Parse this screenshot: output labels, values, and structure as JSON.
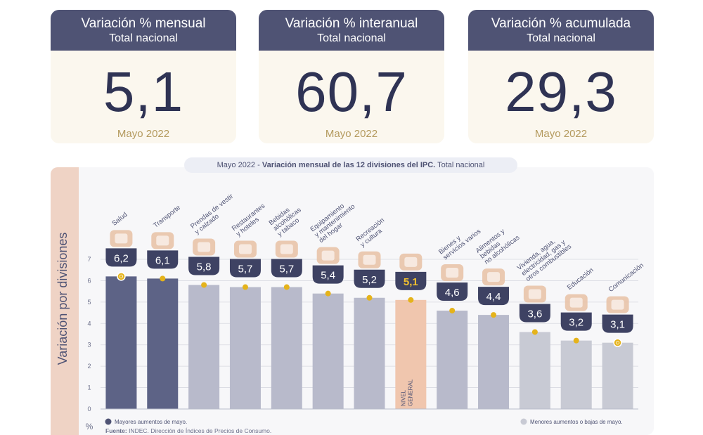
{
  "cards": [
    {
      "title": "Variación % mensual",
      "subtitle": "Total nacional",
      "value": "5,1",
      "date": "Mayo 2022"
    },
    {
      "title": "Variación % interanual",
      "subtitle": "Total nacional",
      "value": "60,7",
      "date": "Mayo 2022"
    },
    {
      "title": "Variación % acumulada",
      "subtitle": "Total nacional",
      "value": "29,3",
      "date": "Mayo 2022"
    }
  ],
  "chart_title": {
    "date": "Mayo 2022",
    "sep": " - ",
    "bold": "Variación mensual de las 12 divisiones del IPC.",
    "rest": " Total nacional"
  },
  "chart_data": {
    "type": "bar",
    "title": "Mayo 2022 - Variación mensual de las 12 divisiones del IPC. Total nacional",
    "ylabel": "Variación por divisiones",
    "yunit": "%",
    "ylim": [
      0,
      7
    ],
    "yticks": [
      "0",
      "1",
      "2",
      "3",
      "4",
      "5",
      "6",
      "7"
    ],
    "grid": true,
    "categories": [
      "Salud",
      "Transporte",
      "Prendas de vestir y calzado",
      "Restaurantes y hoteles",
      "Bebidas alcohólicas y tabaco",
      "Equipamiento y mantenimiento del hogar",
      "Recreación y cultura",
      "Nivel general",
      "Bienes y servicios varios",
      "Alimentos y bebidas no alcohólicas",
      "Vivienda, agua, electricidad, gas y otros combustibles",
      "Educación",
      "Comunicación"
    ],
    "values": [
      6.2,
      6.1,
      5.8,
      5.7,
      5.7,
      5.4,
      5.2,
      5.1,
      4.6,
      4.4,
      3.6,
      3.2,
      3.1
    ],
    "value_labels": [
      "6,2",
      "6,1",
      "5,8",
      "5,7",
      "5,7",
      "5,4",
      "5,2",
      "5,1",
      "4,6",
      "4,4",
      "3,6",
      "3,2",
      "3,1"
    ],
    "category_labels": [
      [
        "Salud"
      ],
      [
        "Transporte"
      ],
      [
        "Prendas de vestir",
        "y calzado"
      ],
      [
        "Restaurantes",
        "y hoteles"
      ],
      [
        "Bebidas",
        "alcohólicas",
        "y tabaco"
      ],
      [
        "Equipamiento",
        "y mantenimiento",
        "del hogar"
      ],
      [
        "Recreación",
        "y cultura"
      ],
      [],
      [
        "Bienes y",
        "servicios varios"
      ],
      [
        "Alimentos y",
        "bebidas",
        "no alcohólicas"
      ],
      [
        "Vivienda, agua,",
        "electricidad, gas y",
        "otros combustibles"
      ],
      [
        "Educación"
      ],
      [
        "Comunicación"
      ]
    ],
    "bar_label_inside": [
      "NIVEL",
      "GENERAL"
    ],
    "group": [
      "mayores",
      "mayores",
      "neutral",
      "neutral",
      "neutral",
      "neutral",
      "neutral",
      "general",
      "neutral",
      "neutral",
      "menores",
      "menores",
      "menores"
    ],
    "icons": [
      "first-aid-icon",
      "car-icon",
      "tshirt-icon",
      "plate-cutlery-icon",
      "bottles-icon",
      "oven-icon",
      "sun-chair-icon",
      "basket-icon",
      "comb-icon",
      "food-icon",
      "house-tools-icon",
      "books-icon",
      "phone-icon"
    ],
    "colors": {
      "mayores": "#5d6386",
      "neutral": "#b8bacb",
      "general": "#f0c6ae",
      "menores": "#c8cad4",
      "label_bg": "#3e4263",
      "marker": "#e5b31b",
      "general_text": "#f2c12e"
    },
    "legend": [
      {
        "label": "Mayores aumentos de mayo.",
        "color": "#4f5374",
        "placement": "bottom-left"
      },
      {
        "label": "Menores aumentos o bajas de mayo.",
        "color": "#c8cad4",
        "placement": "bottom-right"
      }
    ]
  },
  "source": {
    "label": "Fuente:",
    "text": " INDEC. Dirección de Índices de Precios de Consumo."
  }
}
